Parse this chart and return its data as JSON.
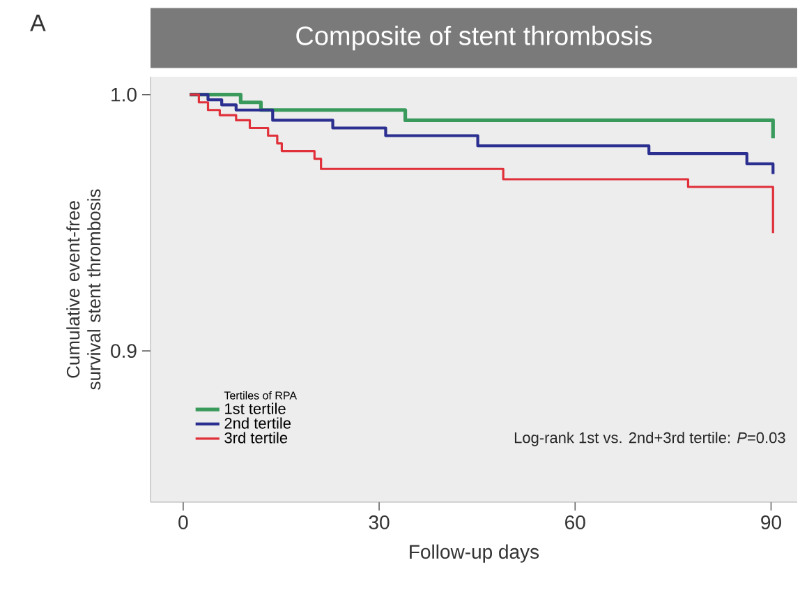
{
  "chart_data": {
    "type": "step",
    "title": "Composite of stent thrombosis",
    "xlabel": "Follow-up days",
    "ylabel": "Cumulative event-free survival stent thrombosis",
    "legend_title": "Tertiles of RPA",
    "annotations": [
      "A",
      "Log-rank 1st vs. 2nd+3rd tertile: *P*=0.03"
    ],
    "xlim": [
      -5,
      94
    ],
    "ylim": [
      0.841,
      1.007
    ],
    "xticks": [
      0,
      30,
      60,
      90
    ],
    "yticks": [
      {
        "value": 1.0,
        "label": "1.0"
      },
      {
        "value": 0.9,
        "label": "0.9"
      }
    ],
    "legend": "bottom left",
    "grid": false,
    "marker": "none",
    "line_style": "solid",
    "series": [
      {
        "name": "1st tertile",
        "color": "#3a9a5c",
        "x": [
          1,
          8.8,
          11.9,
          34,
          90.3,
          90.3
        ],
        "values": [
          1.0,
          0.997,
          0.994,
          0.99,
          0.99,
          0.983
        ]
      },
      {
        "name": "2nd tertile",
        "color": "#2b2f8f",
        "x": [
          1,
          3.8,
          5.9,
          8.1,
          13.7,
          22.9,
          31,
          45.1,
          71.3,
          86.3,
          90.3,
          90.3
        ],
        "values": [
          1.0,
          0.998,
          0.996,
          0.994,
          0.99,
          0.987,
          0.984,
          0.98,
          0.977,
          0.973,
          0.973,
          0.969
        ]
      },
      {
        "name": "3rd tertile",
        "color": "#e0303a",
        "x": [
          1,
          2.4,
          3.8,
          5.6,
          8.1,
          10.2,
          13,
          14.4,
          15.1,
          20.1,
          21.1,
          49,
          77.3,
          90.3,
          90.3
        ],
        "values": [
          1.0,
          0.997,
          0.994,
          0.992,
          0.99,
          0.987,
          0.984,
          0.981,
          0.978,
          0.975,
          0.971,
          0.967,
          0.964,
          0.964,
          0.946
        ]
      }
    ]
  }
}
